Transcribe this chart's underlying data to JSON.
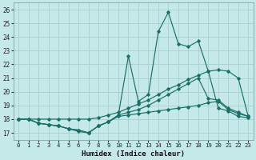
{
  "xlabel": "Humidex (Indice chaleur)",
  "ylabel": "",
  "xlim": [
    -0.5,
    23.5
  ],
  "ylim": [
    16.5,
    26.5
  ],
  "yticks": [
    17,
    18,
    19,
    20,
    21,
    22,
    23,
    24,
    25,
    26
  ],
  "xticks": [
    0,
    1,
    2,
    3,
    4,
    5,
    6,
    7,
    8,
    9,
    10,
    11,
    12,
    13,
    14,
    15,
    16,
    17,
    18,
    19,
    20,
    21,
    22,
    23
  ],
  "background_color": "#c5e8e8",
  "line_color": "#1a7068",
  "grid_color": "#a8d0ce",
  "series": {
    "spiky": [
      18.0,
      18.0,
      17.7,
      17.6,
      17.5,
      17.3,
      17.1,
      17.0,
      17.5,
      17.8,
      18.3,
      22.6,
      19.3,
      19.8,
      24.4,
      25.8,
      23.5,
      23.3,
      23.7,
      21.5,
      18.8,
      18.6,
      18.2,
      18.1
    ],
    "diagonal": [
      18.0,
      18.0,
      18.0,
      18.0,
      18.0,
      18.0,
      18.0,
      18.0,
      18.1,
      18.3,
      18.5,
      18.8,
      19.1,
      19.4,
      19.8,
      20.2,
      20.5,
      20.9,
      21.2,
      21.5,
      21.6,
      21.5,
      21.0,
      18.2
    ],
    "mid1": [
      18.0,
      18.0,
      17.7,
      17.6,
      17.5,
      17.3,
      17.2,
      17.0,
      17.5,
      17.8,
      18.3,
      18.5,
      18.7,
      19.0,
      19.4,
      19.8,
      20.2,
      20.6,
      21.0,
      19.5,
      19.4,
      18.8,
      18.5,
      18.2
    ],
    "flat": [
      18.0,
      18.0,
      17.7,
      17.6,
      17.5,
      17.3,
      17.2,
      17.0,
      17.5,
      17.8,
      18.2,
      18.3,
      18.4,
      18.5,
      18.6,
      18.7,
      18.8,
      18.9,
      19.0,
      19.2,
      19.3,
      18.7,
      18.4,
      18.2
    ]
  },
  "fontname": "monospace"
}
